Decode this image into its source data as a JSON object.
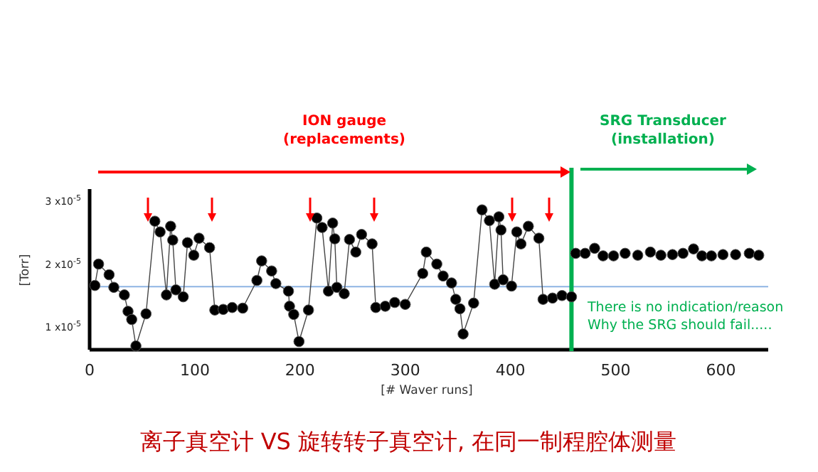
{
  "chart_data": {
    "type": "line",
    "title": "离子真空计 VS 旋转转子真空计, 在同一制程腔体测量",
    "xlabel": "[# Waver runs]",
    "ylabel": "[Torr]",
    "annotations": [
      "ION gauge\n(replacements)",
      "SRG Transducer\n(installation)",
      "There is no indication/reason\nWhy the SRG should fail....."
    ],
    "xlim": [
      0,
      645
    ],
    "xticks": [
      0,
      100,
      200,
      300,
      400,
      500,
      600
    ],
    "ylim": [
      6.5e-06,
      3.2e-05
    ],
    "yticks": [
      {
        "value": 1e-05,
        "label": "1 x10$^{-5}$"
      },
      {
        "value": 2e-05,
        "label": "2 x10$^{-5}$"
      },
      {
        "value": 3e-05,
        "label": "3 x10$^{-5}$"
      }
    ],
    "marker": "circle",
    "ref_lines": [
      {
        "axis": "y",
        "value": 1.65e-05,
        "color": "#8eb4e3"
      },
      {
        "axis": "x",
        "value": 458,
        "color": "#00b050"
      }
    ],
    "series": [
      {
        "type": "line",
        "color": "#000000",
        "x": [
          5,
          8.5,
          18.5,
          23,
          33,
          36.5,
          40,
          44,
          53.6,
          62,
          67,
          73,
          77,
          79,
          82,
          89,
          93,
          99,
          104,
          114,
          119,
          127,
          135.5,
          145.5,
          159,
          163.5,
          173,
          177,
          189,
          190,
          194,
          199,
          208,
          216,
          221,
          227,
          231,
          233,
          235,
          242,
          247,
          253,
          258.5,
          268.5,
          272,
          281,
          290,
          300,
          316.6,
          320,
          330,
          336,
          344,
          348,
          352,
          355,
          365,
          373,
          380,
          385,
          389,
          391,
          393,
          401,
          406,
          410,
          417,
          427,
          431,
          440,
          449,
          458
        ],
        "values": [
          1.67e-05,
          2.01e-05,
          1.84e-05,
          1.64e-05,
          1.52e-05,
          1.26e-05,
          1.13e-05,
          7.1e-06,
          1.22e-05,
          2.69e-05,
          2.52e-05,
          1.52e-05,
          2.61e-05,
          2.39e-05,
          1.6e-05,
          1.49e-05,
          2.35e-05,
          2.15e-05,
          2.42e-05,
          2.27e-05,
          1.28e-05,
          1.29e-05,
          1.32e-05,
          1.31e-05,
          1.75e-05,
          2.06e-05,
          1.9e-05,
          1.7e-05,
          1.58e-05,
          1.34e-05,
          1.21e-05,
          7.8e-06,
          1.28e-05,
          2.74e-05,
          2.59e-05,
          1.58e-05,
          2.66e-05,
          2.41e-05,
          1.64e-05,
          1.54e-05,
          2.4e-05,
          2.2e-05,
          2.48e-05,
          2.33e-05,
          1.32e-05,
          1.34e-05,
          1.4e-05,
          1.37e-05,
          1.86e-05,
          2.2e-05,
          2.01e-05,
          1.82e-05,
          1.71e-05,
          1.45e-05,
          1.3e-05,
          9e-06,
          1.39e-05,
          2.87e-05,
          2.7e-05,
          1.69e-05,
          2.76e-05,
          2.55e-05,
          1.76e-05,
          1.66e-05,
          2.52e-05,
          2.33e-05,
          2.61e-05,
          2.42e-05,
          1.45e-05,
          1.47e-05,
          1.51e-05,
          1.49e-05
        ]
      },
      {
        "type": "scatter",
        "color": "#000000",
        "x": [
          462,
          471,
          480,
          488,
          498,
          509,
          521,
          533,
          543,
          554,
          564,
          574,
          582,
          591,
          602,
          614,
          627,
          636
        ],
        "values": [
          2.18e-05,
          2.18e-05,
          2.26e-05,
          2.14e-05,
          2.14e-05,
          2.18e-05,
          2.15e-05,
          2.2e-05,
          2.15e-05,
          2.16e-05,
          2.18e-05,
          2.25e-05,
          2.14e-05,
          2.14e-05,
          2.16e-05,
          2.16e-05,
          2.18e-05,
          2.15e-05
        ]
      }
    ]
  }
}
